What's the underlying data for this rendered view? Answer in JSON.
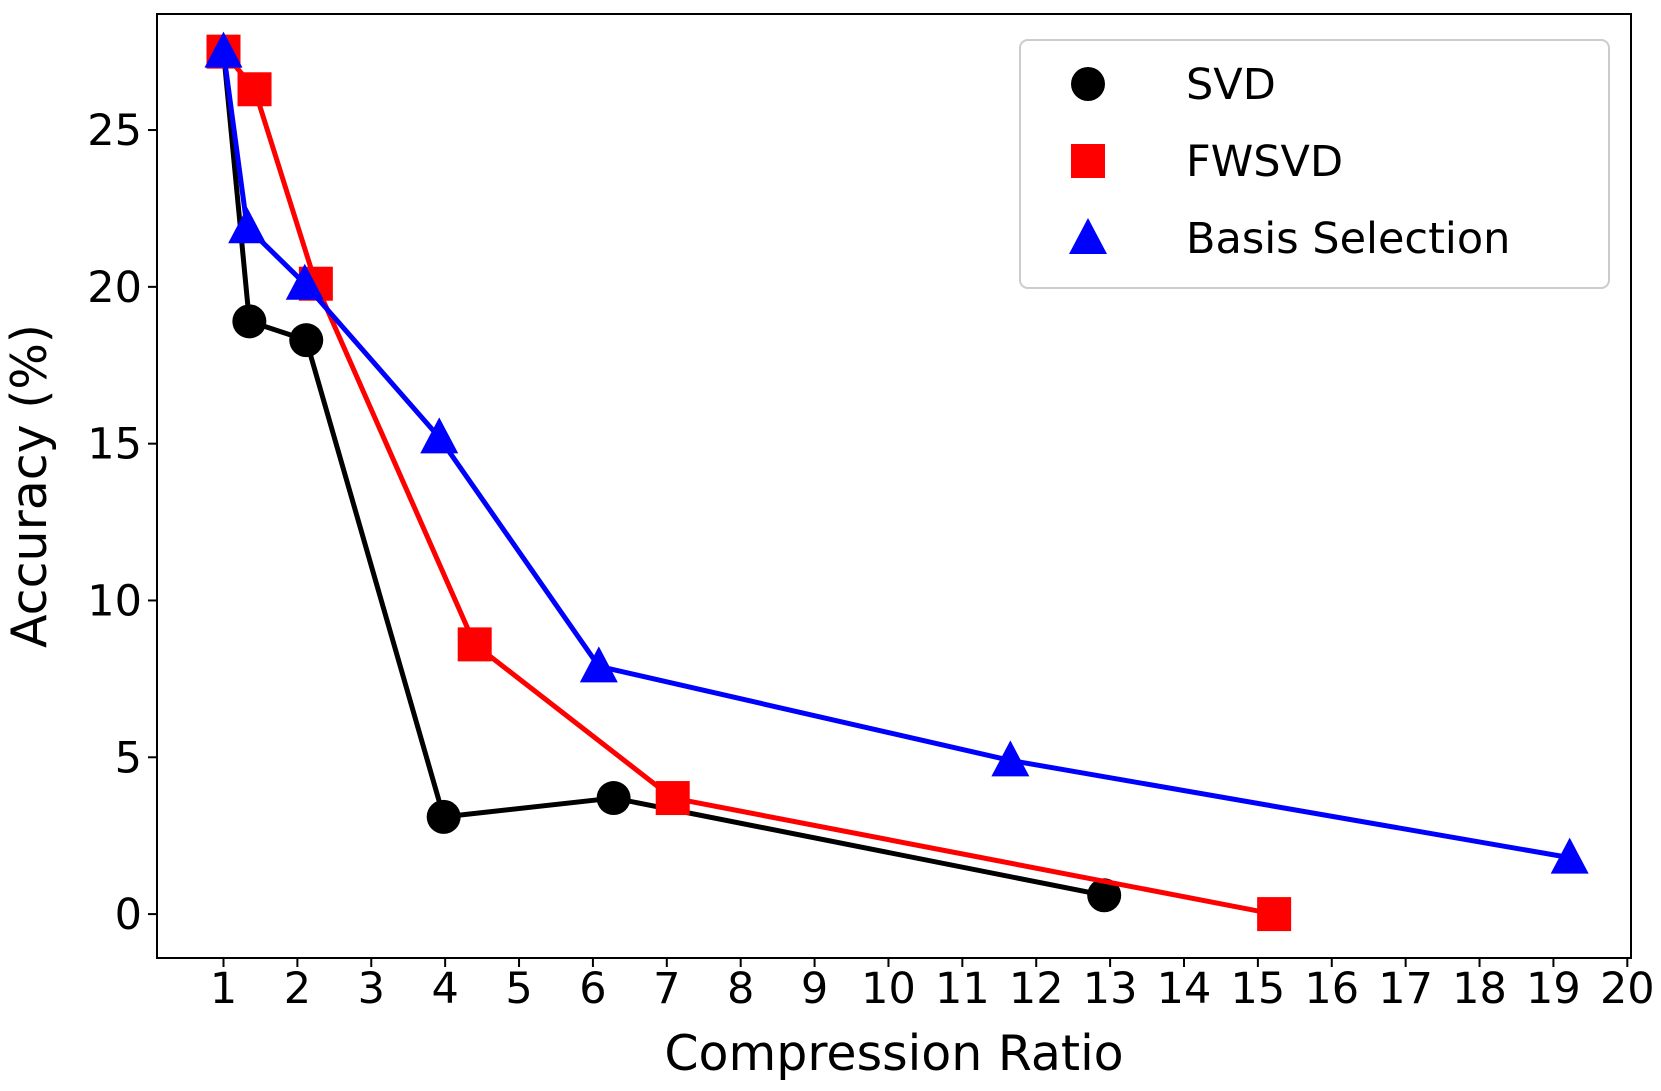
{
  "chart_data": {
    "type": "line",
    "xlabel": "Compression Ratio",
    "ylabel": "Accuracy (%)",
    "xlim": [
      0.1,
      20.05
    ],
    "ylim": [
      -1.4,
      28.7
    ],
    "xticks": [
      1,
      2,
      3,
      4,
      5,
      6,
      7,
      8,
      9,
      10,
      11,
      12,
      13,
      14,
      15,
      16,
      17,
      18,
      19,
      20
    ],
    "yticks": [
      0,
      5,
      10,
      15,
      20,
      25
    ],
    "grid": false,
    "legend_position": "top-right",
    "series": [
      {
        "name": "SVD",
        "color": "#000000",
        "marker": "circle",
        "x": [
          1.0,
          1.35,
          2.12,
          3.98,
          6.28,
          12.92
        ],
        "y": [
          27.5,
          18.9,
          18.3,
          3.1,
          3.7,
          0.6
        ]
      },
      {
        "name": "FWSVD",
        "color": "#ff0000",
        "marker": "square",
        "x": [
          1.0,
          1.42,
          2.25,
          4.4,
          7.08,
          15.22
        ],
        "y": [
          27.5,
          26.3,
          20.1,
          8.6,
          3.7,
          0.0
        ]
      },
      {
        "name": "Basis Selection",
        "color": "#0000ff",
        "marker": "triangle",
        "x": [
          1.0,
          1.32,
          2.1,
          3.92,
          6.08,
          11.65,
          19.22
        ],
        "y": [
          27.5,
          21.9,
          20.1,
          15.2,
          7.9,
          4.9,
          1.8
        ]
      }
    ]
  }
}
